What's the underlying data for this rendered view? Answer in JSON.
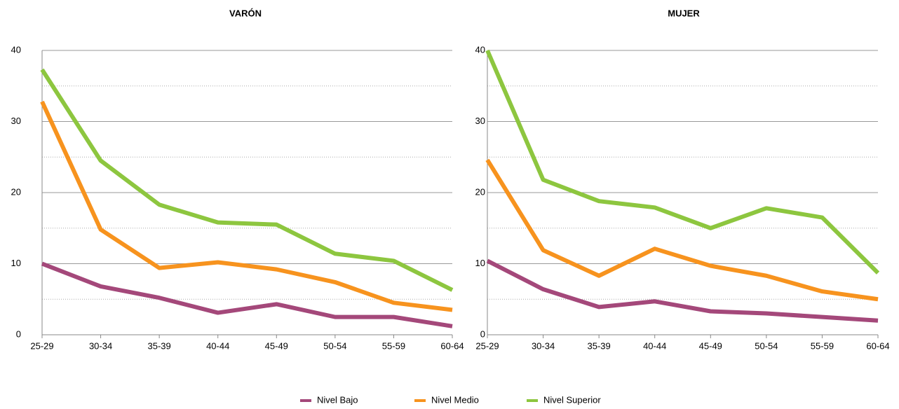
{
  "chart_data": [
    {
      "type": "line",
      "title": "VARÓN",
      "categories": [
        "25-29",
        "30-34",
        "35-39",
        "40-44",
        "45-49",
        "50-54",
        "55-59",
        "60-64"
      ],
      "series": [
        {
          "name": "Nivel Bajo",
          "color": "#a4487a",
          "values": [
            10,
            6.8,
            5.2,
            3.1,
            4.3,
            2.5,
            2.5,
            1.2
          ]
        },
        {
          "name": "Nivel Medio",
          "color": "#f7931e",
          "values": [
            32.8,
            14.8,
            9.4,
            10.2,
            9.2,
            7.4,
            4.5,
            3.5
          ]
        },
        {
          "name": "Nivel Superior",
          "color": "#8dc63f",
          "values": [
            37.3,
            24.5,
            18.3,
            15.8,
            15.5,
            11.4,
            10.4,
            6.3
          ]
        }
      ],
      "ylim": [
        0,
        40
      ],
      "yticks": [
        0,
        10,
        20,
        30,
        40
      ],
      "minor_yticks": [
        5,
        15,
        25,
        35
      ],
      "grid": true
    },
    {
      "type": "line",
      "title": "MUJER",
      "categories": [
        "25-29",
        "30-34",
        "35-39",
        "40-44",
        "45-49",
        "50-54",
        "55-59",
        "60-64"
      ],
      "series": [
        {
          "color": "#a4487a",
          "values": [
            10.4,
            6.4,
            3.9,
            4.7,
            3.3,
            3.0,
            2.5,
            2.0
          ]
        },
        {
          "color": "#f7931e",
          "values": [
            24.6,
            11.9,
            8.3,
            12.1,
            9.7,
            8.3,
            6.1,
            5.0
          ]
        },
        {
          "color": "#8dc63f",
          "values": [
            40,
            21.8,
            18.8,
            17.9,
            15.0,
            17.8,
            16.5,
            8.7
          ]
        }
      ],
      "ylim": [
        0,
        40
      ],
      "yticks": [
        0,
        10,
        20,
        30,
        40
      ],
      "minor_yticks": [
        5,
        15,
        25,
        35
      ],
      "grid": true
    }
  ]
}
